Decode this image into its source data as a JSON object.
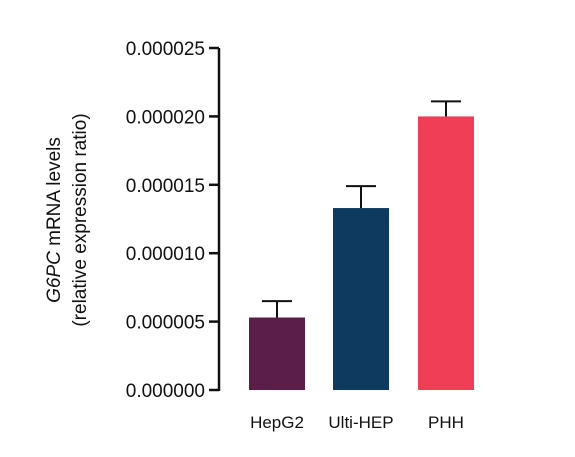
{
  "chart_data": {
    "type": "bar",
    "categories": [
      "HepG2",
      "Ulti-HEP",
      "PHH"
    ],
    "values": [
      5.3e-06,
      1.33e-05,
      2e-05
    ],
    "errors": [
      1.2e-06,
      1.6e-06,
      1.1e-06
    ],
    "colors": [
      "#5b1e4b",
      "#0e3a5f",
      "#ef3e56"
    ],
    "ylabel_italic": "G6PC",
    "ylabel_rest": " mRNA levels",
    "ylabel_line2": "(relative expression ratio)",
    "ylim": [
      0,
      2.5e-05
    ],
    "yticks": [
      "0.000000",
      "0.000005",
      "0.000010",
      "0.000015",
      "0.000020",
      "0.000025"
    ],
    "ytick_values": [
      0,
      5e-06,
      1e-05,
      1.5e-05,
      2e-05,
      2.5e-05
    ],
    "grid": false,
    "legend": "none"
  }
}
